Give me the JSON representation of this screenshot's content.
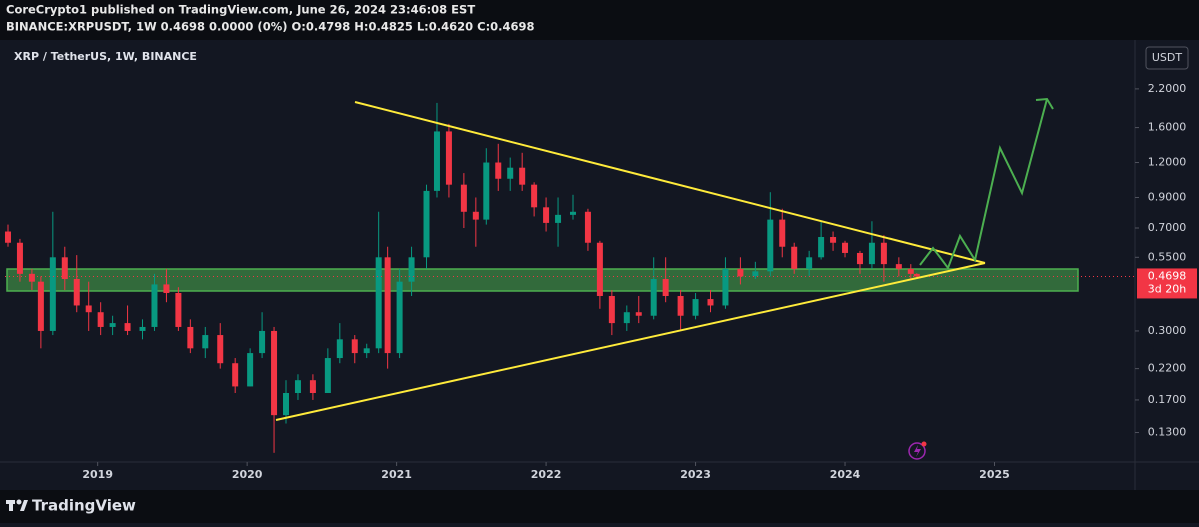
{
  "header": {
    "line1": "CoreCrypto1 published on TradingView.com, June 26, 2024 23:46:08 EST",
    "line2": "BINANCE:XRPUSDT, 1W  0.4698 0.0000 (0%) O:0.4798 H:0.4825 L:0.4620 C:0.4698"
  },
  "footer": {
    "brand": "TradingView"
  },
  "chart_data": {
    "type": "candlestick",
    "title": "XRP / TetherUS, 1W, BINANCE",
    "currency": "USDT",
    "last_price": 0.4698,
    "countdown": "3d 20h",
    "up_color": "#089981",
    "down_color": "#f23645",
    "log_scale": true,
    "grid": false,
    "xlim": [
      2018.38,
      2025.94
    ],
    "xticks": [
      2019,
      2020,
      2021,
      2022,
      2023,
      2024,
      2025
    ],
    "ylim": [
      0.102,
      3.29
    ],
    "yticks": [
      {
        "value": 2.2,
        "label": "2.2000"
      },
      {
        "value": 1.6,
        "label": "1.6000"
      },
      {
        "value": 1.2,
        "label": "1.2000"
      },
      {
        "value": 0.9,
        "label": "0.9000"
      },
      {
        "value": 0.7,
        "label": "0.7000"
      },
      {
        "value": 0.55,
        "label": "0.5500"
      },
      {
        "value": 0.3,
        "label": "0.3000"
      },
      {
        "value": 0.22,
        "label": "0.2200"
      },
      {
        "value": 0.17,
        "label": "0.1700"
      },
      {
        "value": 0.13,
        "label": "0.1300"
      }
    ],
    "x": [
      2018.4,
      2018.48,
      2018.56,
      2018.62,
      2018.7,
      2018.78,
      2018.86,
      2018.94,
      2019.02,
      2019.1,
      2019.2,
      2019.3,
      2019.38,
      2019.46,
      2019.54,
      2019.62,
      2019.72,
      2019.82,
      2019.92,
      2020.02,
      2020.1,
      2020.18,
      2020.26,
      2020.34,
      2020.44,
      2020.54,
      2020.62,
      2020.72,
      2020.8,
      2020.88,
      2020.94,
      2021.02,
      2021.1,
      2021.2,
      2021.27,
      2021.35,
      2021.45,
      2021.53,
      2021.6,
      2021.68,
      2021.76,
      2021.84,
      2021.92,
      2022.0,
      2022.08,
      2022.18,
      2022.28,
      2022.36,
      2022.44,
      2022.54,
      2022.62,
      2022.72,
      2022.8,
      2022.9,
      2023.0,
      2023.1,
      2023.2,
      2023.3,
      2023.4,
      2023.5,
      2023.58,
      2023.66,
      2023.76,
      2023.84,
      2023.92,
      2024.0,
      2024.1,
      2024.18,
      2024.26,
      2024.36,
      2024.44,
      2024.48
    ],
    "open": [
      0.68,
      0.62,
      0.48,
      0.45,
      0.3,
      0.55,
      0.46,
      0.37,
      0.35,
      0.31,
      0.32,
      0.3,
      0.31,
      0.44,
      0.41,
      0.31,
      0.26,
      0.29,
      0.23,
      0.19,
      0.25,
      0.3,
      0.15,
      0.18,
      0.2,
      0.18,
      0.24,
      0.28,
      0.25,
      0.26,
      0.55,
      0.25,
      0.45,
      0.55,
      0.95,
      1.55,
      1.0,
      0.8,
      0.75,
      1.2,
      1.05,
      1.15,
      1.0,
      0.83,
      0.73,
      0.78,
      0.8,
      0.62,
      0.4,
      0.32,
      0.35,
      0.34,
      0.46,
      0.4,
      0.34,
      0.39,
      0.37,
      0.5,
      0.47,
      0.49,
      0.75,
      0.6,
      0.5,
      0.55,
      0.65,
      0.62,
      0.57,
      0.52,
      0.62,
      0.52,
      0.5,
      0.4798
    ],
    "high": [
      0.72,
      0.64,
      0.5,
      0.47,
      0.8,
      0.6,
      0.56,
      0.45,
      0.38,
      0.34,
      0.37,
      0.33,
      0.48,
      0.5,
      0.43,
      0.33,
      0.31,
      0.32,
      0.24,
      0.26,
      0.35,
      0.31,
      0.2,
      0.21,
      0.21,
      0.26,
      0.32,
      0.29,
      0.27,
      0.8,
      0.6,
      0.5,
      0.6,
      1.0,
      1.96,
      1.65,
      1.1,
      0.9,
      1.35,
      1.4,
      1.25,
      1.3,
      1.02,
      0.9,
      0.9,
      0.92,
      0.82,
      0.63,
      0.42,
      0.37,
      0.4,
      0.55,
      0.55,
      0.42,
      0.41,
      0.42,
      0.55,
      0.55,
      0.53,
      0.94,
      0.82,
      0.62,
      0.58,
      0.74,
      0.68,
      0.63,
      0.58,
      0.74,
      0.66,
      0.55,
      0.52,
      0.4825
    ],
    "low": [
      0.6,
      0.45,
      0.42,
      0.26,
      0.29,
      0.42,
      0.35,
      0.3,
      0.29,
      0.29,
      0.29,
      0.28,
      0.3,
      0.38,
      0.3,
      0.25,
      0.24,
      0.22,
      0.18,
      0.19,
      0.24,
      0.11,
      0.14,
      0.17,
      0.17,
      0.18,
      0.23,
      0.23,
      0.24,
      0.25,
      0.22,
      0.24,
      0.4,
      0.5,
      0.9,
      0.9,
      0.7,
      0.6,
      0.72,
      0.95,
      0.95,
      0.95,
      0.77,
      0.68,
      0.6,
      0.75,
      0.58,
      0.36,
      0.29,
      0.3,
      0.32,
      0.33,
      0.38,
      0.3,
      0.33,
      0.35,
      0.36,
      0.44,
      0.46,
      0.47,
      0.55,
      0.48,
      0.47,
      0.54,
      0.58,
      0.55,
      0.48,
      0.5,
      0.45,
      0.47,
      0.46,
      0.462
    ],
    "close": [
      0.62,
      0.48,
      0.45,
      0.3,
      0.55,
      0.46,
      0.37,
      0.35,
      0.31,
      0.32,
      0.3,
      0.31,
      0.44,
      0.41,
      0.31,
      0.26,
      0.29,
      0.23,
      0.19,
      0.25,
      0.3,
      0.15,
      0.18,
      0.2,
      0.18,
      0.24,
      0.28,
      0.25,
      0.26,
      0.55,
      0.25,
      0.45,
      0.55,
      0.95,
      1.55,
      1.0,
      0.8,
      0.75,
      1.2,
      1.05,
      1.15,
      1.0,
      0.83,
      0.73,
      0.78,
      0.8,
      0.62,
      0.4,
      0.32,
      0.35,
      0.34,
      0.46,
      0.4,
      0.34,
      0.39,
      0.37,
      0.5,
      0.47,
      0.49,
      0.75,
      0.6,
      0.5,
      0.55,
      0.65,
      0.62,
      0.57,
      0.52,
      0.62,
      0.52,
      0.5,
      0.4798,
      0.4698
    ]
  }
}
